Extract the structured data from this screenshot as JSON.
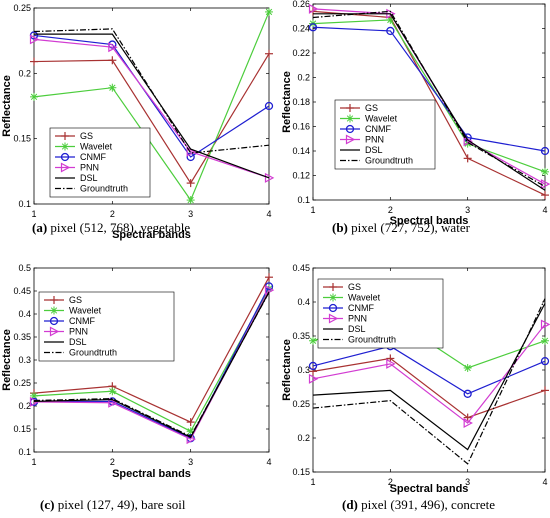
{
  "colors": {
    "GS": "#a83232",
    "Wavelet": "#4ccd3c",
    "CNMF": "#1f1fd1",
    "PNN": "#d23cd2",
    "DSL": "#000000",
    "Groundtruth": "#000000"
  },
  "chart_data": [
    {
      "type": "line",
      "caption_tag": "(a)",
      "caption_text": "pixel (512, 768), vegetable",
      "xlabel": "Spectral bands",
      "ylabel": "Reflectance",
      "x": [
        1,
        2,
        3,
        4
      ],
      "xticks": [
        "1",
        "2",
        "3",
        "4"
      ],
      "yticks": [
        "0.1",
        "0.15",
        "0.2",
        "0.25"
      ],
      "ylim": [
        0.1,
        0.25
      ],
      "legend_position": "bottom-left",
      "series": [
        {
          "name": "GS",
          "values": [
            0.209,
            0.21,
            0.116,
            0.215
          ]
        },
        {
          "name": "Wavelet",
          "values": [
            0.182,
            0.189,
            0.103,
            0.247
          ]
        },
        {
          "name": "CNMF",
          "values": [
            0.229,
            0.222,
            0.136,
            0.175
          ]
        },
        {
          "name": "PNN",
          "values": [
            0.226,
            0.22,
            0.14,
            0.12
          ]
        },
        {
          "name": "DSL",
          "values": [
            0.23,
            0.23,
            0.142,
            0.12
          ]
        },
        {
          "name": "Groundtruth",
          "values": [
            0.232,
            0.234,
            0.139,
            0.145
          ]
        }
      ]
    },
    {
      "type": "line",
      "caption_tag": "(b)",
      "caption_text": "pixel (727, 752), water",
      "xlabel": "Spectral bands",
      "ylabel": "Reflectance",
      "x": [
        1,
        2,
        3,
        4
      ],
      "xticks": [
        "1",
        "2",
        "3",
        "4"
      ],
      "yticks": [
        "0.1",
        "0.12",
        "0.14",
        "0.16",
        "0.18",
        "0.2",
        "0.22",
        "0.24",
        "0.26"
      ],
      "ylim": [
        0.1,
        0.26
      ],
      "legend_position": "bottom-left",
      "series": [
        {
          "name": "GS",
          "values": [
            0.254,
            0.249,
            0.134,
            0.104
          ]
        },
        {
          "name": "Wavelet",
          "values": [
            0.244,
            0.247,
            0.146,
            0.123
          ]
        },
        {
          "name": "CNMF",
          "values": [
            0.241,
            0.238,
            0.151,
            0.14
          ]
        },
        {
          "name": "PNN",
          "values": [
            0.256,
            0.252,
            0.148,
            0.113
          ]
        },
        {
          "name": "DSL",
          "values": [
            0.252,
            0.252,
            0.149,
            0.108
          ]
        },
        {
          "name": "Groundtruth",
          "values": [
            0.249,
            0.254,
            0.147,
            0.111
          ]
        }
      ]
    },
    {
      "type": "line",
      "caption_tag": "(c)",
      "caption_text": "pixel (127, 49), bare soil",
      "xlabel": "Spectral bands",
      "ylabel": "Reflectance",
      "x": [
        1,
        2,
        3,
        4
      ],
      "xticks": [
        "1",
        "2",
        "3",
        "4"
      ],
      "yticks": [
        "0.1",
        "0.15",
        "0.2",
        "0.25",
        "0.3",
        "0.35",
        "0.4",
        "0.45",
        "0.5"
      ],
      "ylim": [
        0.1,
        0.5
      ],
      "legend_position": "top-left",
      "series": [
        {
          "name": "GS",
          "values": [
            0.228,
            0.243,
            0.165,
            0.48
          ]
        },
        {
          "name": "Wavelet",
          "values": [
            0.222,
            0.232,
            0.145,
            0.455
          ]
        },
        {
          "name": "CNMF",
          "values": [
            0.209,
            0.21,
            0.13,
            0.46
          ]
        },
        {
          "name": "PNN",
          "values": [
            0.209,
            0.207,
            0.128,
            0.452
          ]
        },
        {
          "name": "DSL",
          "values": [
            0.21,
            0.214,
            0.132,
            0.448
          ]
        },
        {
          "name": "Groundtruth",
          "values": [
            0.212,
            0.216,
            0.134,
            0.447
          ]
        }
      ]
    },
    {
      "type": "line",
      "caption_tag": "(d)",
      "caption_text": "pixel (391, 496), concrete",
      "xlabel": "Spectral bands",
      "ylabel": "Reflectance",
      "x": [
        1,
        2,
        3,
        4
      ],
      "xticks": [
        "1",
        "2",
        "3",
        "4"
      ],
      "yticks": [
        "0.15",
        "0.2",
        "0.25",
        "0.3",
        "0.35",
        "0.4",
        "0.45"
      ],
      "ylim": [
        0.15,
        0.45
      ],
      "legend_position": "top-left",
      "series": [
        {
          "name": "GS",
          "values": [
            0.298,
            0.317,
            0.23,
            0.27
          ]
        },
        {
          "name": "Wavelet",
          "values": [
            0.343,
            0.378,
            0.303,
            0.343
          ]
        },
        {
          "name": "CNMF",
          "values": [
            0.306,
            0.335,
            0.265,
            0.313
          ]
        },
        {
          "name": "PNN",
          "values": [
            0.287,
            0.309,
            0.222,
            0.367
          ]
        },
        {
          "name": "DSL",
          "values": [
            0.263,
            0.27,
            0.183,
            0.398
          ]
        },
        {
          "name": "Groundtruth",
          "values": [
            0.244,
            0.255,
            0.162,
            0.405
          ]
        }
      ]
    }
  ]
}
